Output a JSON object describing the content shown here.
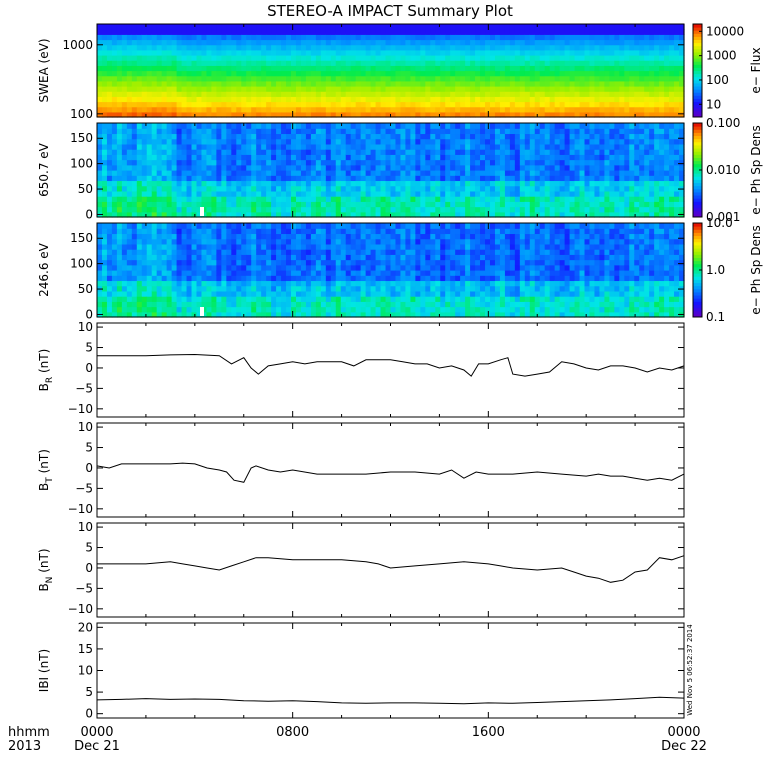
{
  "title": "STEREO-A IMPACT Summary Plot",
  "footer": {
    "left_top": "hhmm",
    "left_bottom": "2013",
    "ticks": [
      "0000",
      "0800",
      "1600",
      "0000"
    ],
    "dates": [
      "Dec 21",
      "",
      "",
      "Dec 22"
    ]
  },
  "stamp": "Wed Nov 5 06:52:37 2014",
  "chart_data": [
    {
      "type": "heatmap",
      "panel": "swea-flux",
      "ylabel": "SWEA (eV)",
      "yscale": "log",
      "ylim": [
        90,
        2000
      ],
      "yticks": [
        {
          "v": 100,
          "t": "100"
        },
        {
          "v": 1000,
          "t": "1000"
        }
      ],
      "colorbar": {
        "label": "e− Flux",
        "scale": "log",
        "range": [
          3,
          20000
        ],
        "ticks": [
          {
            "v": 10,
            "t": "10"
          },
          {
            "v": 100,
            "t": "100"
          },
          {
            "v": 1000,
            "t": "1000"
          },
          {
            "v": 10000,
            "t": "10000"
          }
        ]
      }
    },
    {
      "type": "heatmap",
      "panel": "pad-650",
      "ylabel": "650.7 eV",
      "ylim": [
        -5,
        180
      ],
      "yticks": [
        {
          "v": 0,
          "t": "0"
        },
        {
          "v": 50,
          "t": "50"
        },
        {
          "v": 100,
          "t": "100"
        },
        {
          "v": 150,
          "t": "150"
        }
      ],
      "colorbar": {
        "label": "e− Ph Sp Dens",
        "scale": "log",
        "range": [
          0.001,
          0.1
        ],
        "ticks": [
          {
            "v": 0.001,
            "t": "0.001"
          },
          {
            "v": 0.01,
            "t": "0.010"
          },
          {
            "v": 0.1,
            "t": "0.100"
          }
        ]
      }
    },
    {
      "type": "heatmap",
      "panel": "pad-246",
      "ylabel": "246.6 eV",
      "ylim": [
        -5,
        180
      ],
      "yticks": [
        {
          "v": 0,
          "t": "0"
        },
        {
          "v": 50,
          "t": "50"
        },
        {
          "v": 100,
          "t": "100"
        },
        {
          "v": 150,
          "t": "150"
        }
      ],
      "colorbar": {
        "label": "e− Ph Sp Dens",
        "scale": "log",
        "range": [
          0.1,
          10
        ],
        "ticks": [
          {
            "v": 0.1,
            "t": "0.1"
          },
          {
            "v": 1,
            "t": "1.0"
          },
          {
            "v": 10,
            "t": "10.0"
          }
        ]
      }
    },
    {
      "type": "line",
      "panel": "br",
      "ylabel_main": "B",
      "ylabel_sub": "R",
      "ylabel_unit": " (nT)",
      "ylim": [
        -12,
        11
      ],
      "yticks": [
        {
          "v": -10,
          "t": "−10"
        },
        {
          "v": -5,
          "t": "−5"
        },
        {
          "v": 0,
          "t": "0"
        },
        {
          "v": 5,
          "t": "5"
        },
        {
          "v": 10,
          "t": "10"
        }
      ],
      "x": [
        0,
        1,
        2,
        3,
        4,
        5,
        5.5,
        6,
        6.3,
        6.6,
        7,
        7.5,
        8,
        8.5,
        9,
        9.5,
        10,
        10.5,
        11,
        11.5,
        12,
        12.5,
        13,
        13.5,
        14,
        14.5,
        15,
        15.3,
        15.6,
        16,
        16.5,
        16.8,
        17,
        17.5,
        18,
        18.5,
        19,
        19.5,
        20,
        20.5,
        21,
        21.5,
        22,
        22.5,
        23,
        23.5,
        24
      ],
      "y": [
        3,
        3,
        3,
        3.2,
        3.3,
        3,
        1,
        2.5,
        0,
        -1.5,
        0.5,
        1,
        1.5,
        1,
        1.5,
        1.5,
        1.5,
        0.5,
        2,
        2,
        2,
        1.5,
        1,
        1,
        0,
        0.5,
        -0.5,
        -2,
        1,
        1,
        2,
        2.5,
        -1.5,
        -2,
        -1.5,
        -1,
        1.5,
        1,
        0,
        -0.5,
        0.5,
        0.5,
        0,
        -1,
        0,
        -0.5,
        0.5
      ]
    },
    {
      "type": "line",
      "panel": "bt",
      "ylabel_main": "B",
      "ylabel_sub": "T",
      "ylabel_unit": " (nT)",
      "ylim": [
        -12,
        11
      ],
      "yticks": [
        {
          "v": -10,
          "t": "−10"
        },
        {
          "v": -5,
          "t": "−5"
        },
        {
          "v": 0,
          "t": "0"
        },
        {
          "v": 5,
          "t": "5"
        },
        {
          "v": 10,
          "t": "10"
        }
      ],
      "x": [
        0,
        0.5,
        1,
        2,
        3,
        3.5,
        4,
        4.5,
        5,
        5.3,
        5.6,
        6,
        6.3,
        6.5,
        7,
        7.5,
        8,
        9,
        10,
        11,
        12,
        13,
        14,
        14.5,
        15,
        15.5,
        16,
        17,
        18,
        19,
        20,
        20.5,
        21,
        21.5,
        22,
        22.5,
        23,
        23.5,
        24
      ],
      "y": [
        0.5,
        0,
        1,
        1,
        1,
        1.2,
        1,
        0,
        -0.5,
        -1,
        -3,
        -3.5,
        0,
        0.5,
        -0.5,
        -1,
        -0.5,
        -1.5,
        -1.5,
        -1.5,
        -1,
        -1,
        -1.5,
        -0.5,
        -2.5,
        -1,
        -1.5,
        -1.5,
        -1,
        -1.5,
        -2,
        -1.5,
        -2,
        -2,
        -2.5,
        -3,
        -2.5,
        -3,
        -1.5
      ]
    },
    {
      "type": "line",
      "panel": "bn",
      "ylabel_main": "B",
      "ylabel_sub": "N",
      "ylabel_unit": " (nT)",
      "ylim": [
        -12,
        11
      ],
      "yticks": [
        {
          "v": -10,
          "t": "−10"
        },
        {
          "v": -5,
          "t": "−5"
        },
        {
          "v": 0,
          "t": "0"
        },
        {
          "v": 5,
          "t": "5"
        },
        {
          "v": 10,
          "t": "10"
        }
      ],
      "x": [
        0,
        1,
        2,
        3,
        3.5,
        4,
        4.5,
        5,
        5.5,
        6,
        6.5,
        7,
        8,
        9,
        10,
        11,
        11.5,
        12,
        13,
        14,
        15,
        16,
        16.5,
        17,
        18,
        19,
        19.5,
        20,
        20.5,
        21,
        21.5,
        22,
        22.5,
        23,
        23.5,
        24
      ],
      "y": [
        1,
        1,
        1,
        1.5,
        1,
        0.5,
        0,
        -0.5,
        0.5,
        1.5,
        2.5,
        2.5,
        2,
        2,
        2,
        1.5,
        1,
        0,
        0.5,
        1,
        1.5,
        1,
        0.5,
        0,
        -0.5,
        0,
        -1,
        -2,
        -2.5,
        -3.5,
        -3,
        -1,
        -0.5,
        2.5,
        2,
        3
      ]
    },
    {
      "type": "line",
      "panel": "bmag",
      "ylabel_main": "IBI (nT)",
      "ylim": [
        -1,
        21
      ],
      "yticks": [
        {
          "v": 0,
          "t": "0"
        },
        {
          "v": 5,
          "t": "5"
        },
        {
          "v": 10,
          "t": "10"
        },
        {
          "v": 15,
          "t": "15"
        },
        {
          "v": 20,
          "t": "20"
        }
      ],
      "x": [
        0,
        1,
        2,
        3,
        4,
        5,
        6,
        7,
        8,
        9,
        10,
        11,
        12,
        13,
        14,
        15,
        16,
        17,
        18,
        19,
        20,
        21,
        22,
        23,
        24
      ],
      "y": [
        3.2,
        3.3,
        3.5,
        3.3,
        3.4,
        3.3,
        3,
        2.9,
        3,
        2.8,
        2.5,
        2.4,
        2.5,
        2.5,
        2.4,
        2.3,
        2.5,
        2.4,
        2.6,
        2.8,
        3,
        3.2,
        3.5,
        3.8,
        3.6
      ]
    }
  ]
}
